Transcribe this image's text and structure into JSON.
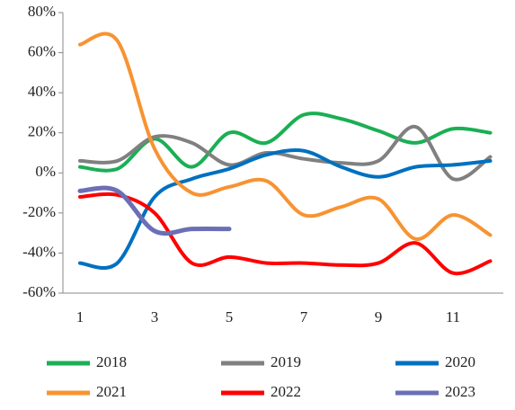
{
  "chart_data": {
    "type": "line",
    "categories": [
      "1",
      null,
      "3",
      null,
      "5",
      null,
      "7",
      null,
      "9",
      null,
      "11",
      null
    ],
    "series": [
      {
        "name": "2018",
        "color": "#1aaf54",
        "values": [
          3,
          2,
          17,
          3,
          20,
          15,
          29,
          27,
          21,
          15,
          22,
          20
        ]
      },
      {
        "name": "2019",
        "color": "#808080",
        "values": [
          6,
          6,
          18,
          15,
          4,
          10,
          7,
          5,
          6,
          23,
          -3,
          8
        ]
      },
      {
        "name": "2020",
        "color": "#0070c0",
        "values": [
          -45,
          -45,
          -12,
          -3,
          2,
          9,
          11,
          3,
          -2,
          3,
          4,
          6
        ]
      },
      {
        "name": "2021",
        "color": "#f79332",
        "values": [
          64,
          66,
          12,
          -10,
          -7,
          -4,
          -21,
          -17,
          -13,
          -33,
          -21,
          -31
        ]
      },
      {
        "name": "2022",
        "color": "#ff0000",
        "values": [
          -12,
          -11,
          -20,
          -45,
          -42,
          -45,
          -45,
          -46,
          -45,
          -35,
          -50,
          -44
        ]
      },
      {
        "name": "2023",
        "color": "#6b6fb5",
        "values": [
          -9,
          -9,
          -29,
          -28,
          -28,
          null,
          null,
          null,
          null,
          null,
          null,
          null
        ]
      }
    ],
    "ylim": [
      -60,
      80
    ],
    "yticks": [
      {
        "value": -60,
        "label": "-60%"
      },
      {
        "value": -40,
        "label": "-40%"
      },
      {
        "value": -20,
        "label": "-20%"
      },
      {
        "value": 0,
        "label": "0%"
      },
      {
        "value": 20,
        "label": "20%"
      },
      {
        "value": 40,
        "label": "40%"
      },
      {
        "value": 60,
        "label": "60%"
      },
      {
        "value": 80,
        "label": "80%"
      }
    ]
  }
}
